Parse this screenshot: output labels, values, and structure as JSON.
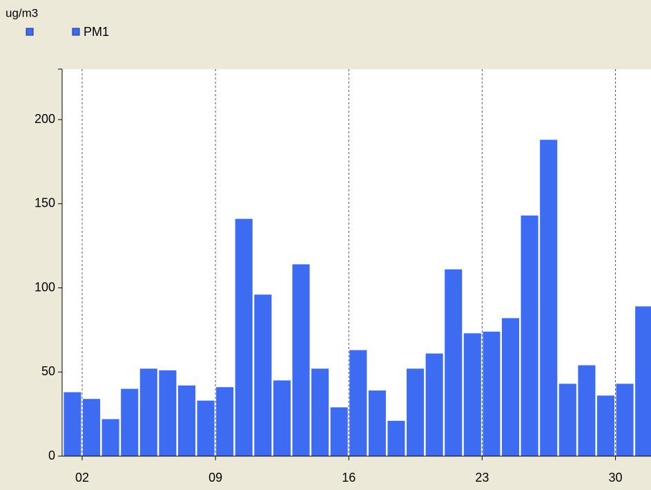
{
  "chart_data": {
    "type": "bar",
    "y_axis_label": "ug/m3",
    "series": [
      {
        "name": "PM1",
        "color": "#3d6cf2",
        "x": [
          1,
          2,
          3,
          4,
          5,
          6,
          7,
          8,
          9,
          10,
          11,
          12,
          13,
          14,
          15,
          16,
          17,
          18,
          19,
          20,
          21,
          22,
          23,
          24,
          25,
          26,
          27,
          28,
          29,
          30,
          31
        ],
        "values": [
          38,
          34,
          22,
          40,
          52,
          51,
          42,
          33,
          41,
          141,
          96,
          45,
          114,
          52,
          29,
          63,
          39,
          21,
          52,
          61,
          111,
          73,
          74,
          82,
          143,
          188,
          43,
          54,
          36,
          43,
          89
        ]
      }
    ],
    "xlim": [
      1,
      32
    ],
    "xticks": [
      {
        "value": 2,
        "label": "02"
      },
      {
        "value": 9,
        "label": "09"
      },
      16,
      23,
      30
    ],
    "ylim": [
      0,
      230
    ],
    "yticks": [
      0,
      50,
      100,
      150,
      200
    ],
    "grid": true
  }
}
